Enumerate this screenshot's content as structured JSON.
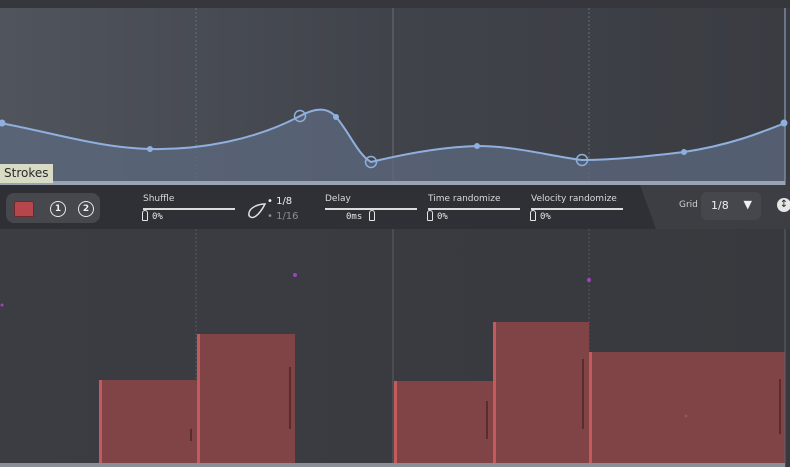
{
  "lfo": {
    "label": "Strokes",
    "fill_color": "#5d6a80",
    "line_color": "#8fb0de"
  },
  "toolbar": {
    "buttons": [
      "1",
      "2"
    ],
    "shuffle": {
      "label": "Shuffle",
      "value": "0%"
    },
    "rate": {
      "options": [
        "1/8",
        "1/16"
      ],
      "selected": "1/8"
    },
    "delay": {
      "label": "Delay",
      "value": "0ms"
    },
    "time_randomize": {
      "label": "Time randomize",
      "value": "0%"
    },
    "velocity_randomize": {
      "label": "Velocity randomize",
      "value": "0%"
    },
    "grid": {
      "label": "Grid",
      "value": "1/8",
      "arrow": "▼"
    }
  },
  "velocity": {
    "bar_color": "#804446",
    "bar_edge_color": "#c45a5c"
  },
  "icons": {
    "expand": "updown-arrow-icon",
    "drop": "drop-icon"
  }
}
